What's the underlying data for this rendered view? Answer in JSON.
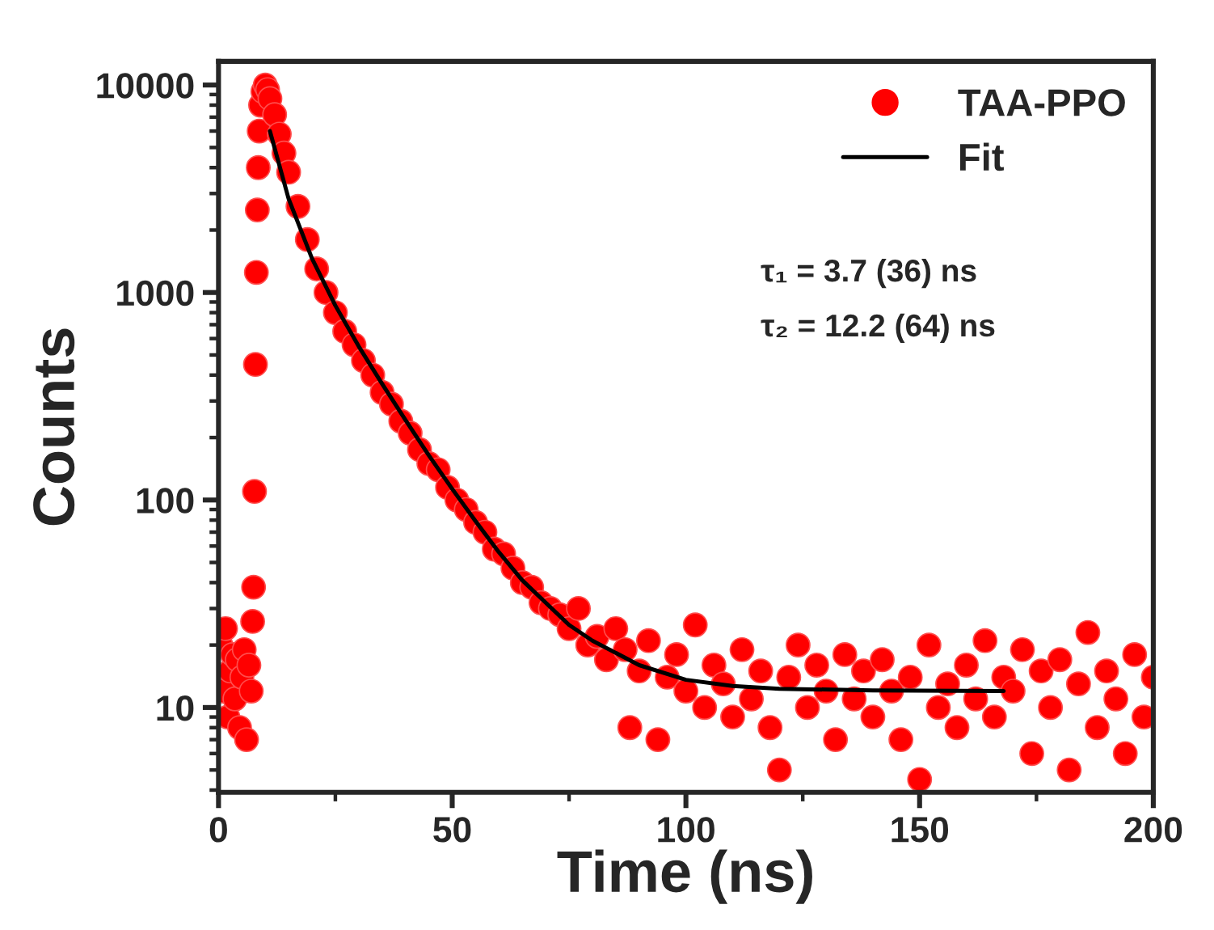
{
  "chart_data": {
    "type": "scatter",
    "xlabel": "Time (ns)",
    "ylabel": "Counts",
    "log": "y",
    "xlim": [
      0,
      200
    ],
    "ylim": [
      3.9,
      13000
    ],
    "xticks": [
      0,
      50,
      100,
      150,
      200
    ],
    "yticks": [
      10,
      100,
      1000,
      10000
    ],
    "grid": false,
    "legend": "top right",
    "series": [
      {
        "name": "TAA-PPO",
        "marker": "circle",
        "color": "#ff0000",
        "x": [
          0.5,
          1,
          1.5,
          2,
          2.5,
          3,
          3.5,
          4,
          4.5,
          5,
          5.5,
          6,
          6.5,
          7,
          7.3,
          7.5,
          7.7,
          7.9,
          8.1,
          8.3,
          8.5,
          8.7,
          9,
          9.5,
          10,
          10.5,
          11,
          12,
          13,
          14,
          15,
          17,
          19,
          21,
          23,
          25,
          27,
          29,
          31,
          33,
          35,
          37,
          39,
          41,
          43,
          45,
          47,
          49,
          51,
          53,
          55,
          57,
          59,
          61,
          63,
          65,
          67,
          69,
          71,
          73,
          75,
          77,
          79,
          81,
          83,
          85,
          87,
          88,
          90,
          92,
          94,
          96,
          98,
          100,
          102,
          104,
          106,
          108,
          110,
          112,
          114,
          116,
          118,
          120,
          122,
          124,
          126,
          128,
          130,
          132,
          134,
          136,
          138,
          140,
          142,
          144,
          146,
          148,
          150,
          152,
          154,
          156,
          158,
          160,
          162,
          164,
          166,
          168,
          170,
          172,
          174,
          176,
          178,
          180,
          182,
          184,
          186,
          188,
          190,
          192,
          194,
          196,
          198,
          200
        ],
        "values": [
          20,
          12,
          24,
          9,
          15,
          18,
          11,
          17,
          8,
          14,
          19,
          7,
          16,
          12,
          26,
          38,
          110,
          450,
          1250,
          2500,
          4000,
          6000,
          8000,
          9300,
          10000,
          9500,
          8600,
          7200,
          5800,
          4700,
          3800,
          2600,
          1800,
          1300,
          1000,
          800,
          650,
          560,
          470,
          400,
          330,
          290,
          240,
          210,
          175,
          150,
          140,
          115,
          100,
          90,
          78,
          70,
          58,
          55,
          47,
          40,
          38,
          32,
          30,
          28,
          24,
          30,
          20,
          22,
          17,
          24,
          19,
          8,
          15,
          21,
          7,
          14,
          18,
          12,
          25,
          10,
          16,
          13,
          9,
          19,
          11,
          15,
          8,
          5,
          14,
          20,
          10,
          16,
          12,
          7,
          18,
          11,
          15,
          9,
          17,
          12,
          7,
          14,
          4.5,
          20,
          10,
          13,
          8,
          16,
          11,
          21,
          9,
          14,
          12,
          19,
          6,
          15,
          10,
          17,
          5,
          13,
          23,
          8,
          15,
          11,
          6,
          18,
          9,
          14
        ]
      },
      {
        "name": "Fit",
        "type": "line",
        "marker": "none",
        "color": "#000000",
        "x": [
          11,
          15,
          20,
          25,
          30,
          35,
          40,
          45,
          50,
          55,
          60,
          65,
          70,
          75,
          80,
          90,
          100,
          110,
          120,
          140,
          168
        ],
        "values": [
          6000,
          2830,
          1460,
          865,
          550,
          363,
          243,
          164,
          113,
          79,
          56,
          41,
          32,
          25,
          21,
          16,
          13.6,
          12.7,
          12.3,
          12.1,
          12
        ]
      }
    ],
    "annotations": [
      "τ₁ = 3.7 (36) ns",
      "τ₂ = 12.2 (64) ns"
    ]
  }
}
